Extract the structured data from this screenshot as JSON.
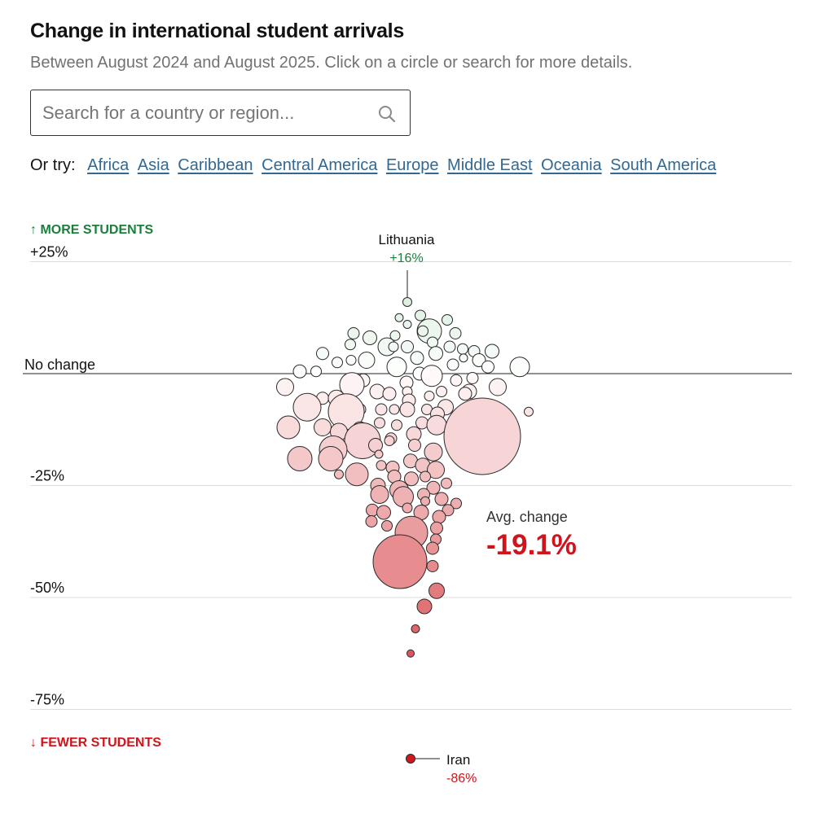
{
  "header": {
    "title": "Change in international student arrivals",
    "subtitle": "Between August 2024 and August 2025. Click on a circle or search for more details."
  },
  "search": {
    "placeholder": "Search for a country or region..."
  },
  "try_row": {
    "label": "Or try:",
    "links": [
      "Africa",
      "Asia",
      "Caribbean",
      "Central America",
      "Europe",
      "Middle East",
      "Oceania",
      "South America"
    ]
  },
  "colors": {
    "positive": "#1a7f3a",
    "negative": "#d0141b",
    "link": "#326891",
    "gridline": "#dcdcdc"
  },
  "chart_data": {
    "type": "scatter",
    "title": "Change in international student arrivals",
    "y_unit": "% change",
    "ylim": [
      -86,
      25
    ],
    "y_ticks": [
      {
        "value": 25,
        "label": "+25%"
      },
      {
        "value": 0,
        "label": "No change"
      },
      {
        "value": -25,
        "label": "-25%"
      },
      {
        "value": -50,
        "label": "-50%"
      },
      {
        "value": -75,
        "label": "-75%"
      }
    ],
    "direction_labels": {
      "up": "↑ MORE STUDENTS",
      "down": "↓ FEWER STUDENTS"
    },
    "average": {
      "label": "Avg. change",
      "value_label": "-19.1%",
      "value": -19.1
    },
    "annotations": [
      {
        "name": "Lithuania",
        "label": "+16%",
        "value": 16
      },
      {
        "name": "Iran",
        "label": "-86%",
        "value": -86
      }
    ],
    "points": [
      {
        "value": 16,
        "size": 5.5,
        "offset": 0
      },
      {
        "value": 13,
        "size": 6.5,
        "offset": 16
      },
      {
        "value": 12.5,
        "size": 5,
        "offset": -10
      },
      {
        "value": 12,
        "size": 6.5,
        "offset": 49
      },
      {
        "value": 11,
        "size": 5,
        "offset": 0
      },
      {
        "value": 9.5,
        "size": 15,
        "offset": 27
      },
      {
        "value": 9.5,
        "size": 6.5,
        "offset": 19
      },
      {
        "value": 9,
        "size": 7,
        "offset": 59
      },
      {
        "value": 9,
        "size": 7,
        "offset": -66
      },
      {
        "value": 8.5,
        "size": 6,
        "offset": -15
      },
      {
        "value": 8,
        "size": 8.5,
        "offset": -46
      },
      {
        "value": 7,
        "size": 6.5,
        "offset": 31
      },
      {
        "value": 6.5,
        "size": 6.5,
        "offset": -70
      },
      {
        "value": 6,
        "size": 11,
        "offset": -25
      },
      {
        "value": 6,
        "size": 7.5,
        "offset": 0
      },
      {
        "value": 6,
        "size": 6,
        "offset": -17
      },
      {
        "value": 6,
        "size": 7,
        "offset": 52
      },
      {
        "value": 5.5,
        "size": 6.5,
        "offset": 68
      },
      {
        "value": 5,
        "size": 7,
        "offset": 82
      },
      {
        "value": 5,
        "size": 8.5,
        "offset": 104
      },
      {
        "value": 4.5,
        "size": 8.5,
        "offset": 35
      },
      {
        "value": 4.5,
        "size": 7.5,
        "offset": -104
      },
      {
        "value": 3.5,
        "size": 5,
        "offset": 69
      },
      {
        "value": 3.5,
        "size": 8,
        "offset": 12
      },
      {
        "value": 3,
        "size": 10,
        "offset": -50
      },
      {
        "value": 3,
        "size": 8,
        "offset": 88
      },
      {
        "value": 3,
        "size": 6,
        "offset": -69
      },
      {
        "value": 2.5,
        "size": 6.5,
        "offset": -86
      },
      {
        "value": 2,
        "size": 7,
        "offset": 56
      },
      {
        "value": 1.5,
        "size": 12,
        "offset": -13
      },
      {
        "value": 1.5,
        "size": 12,
        "offset": 138
      },
      {
        "value": 1.5,
        "size": 7.5,
        "offset": 99
      },
      {
        "value": 0.5,
        "size": 6.5,
        "offset": -112
      },
      {
        "value": 0.5,
        "size": 8,
        "offset": -132
      },
      {
        "value": 0,
        "size": 8,
        "offset": 15
      },
      {
        "value": -0.5,
        "size": 13,
        "offset": 30
      },
      {
        "value": -1,
        "size": 7,
        "offset": 80
      },
      {
        "value": -1.5,
        "size": 8,
        "offset": -54
      },
      {
        "value": -1.5,
        "size": 7,
        "offset": 60
      },
      {
        "value": -2,
        "size": 8,
        "offset": -1
      },
      {
        "value": -2.5,
        "size": 15,
        "offset": -68
      },
      {
        "value": -3,
        "size": 10.5,
        "offset": -150
      },
      {
        "value": -3,
        "size": 10.5,
        "offset": 111
      },
      {
        "value": -4,
        "size": 9,
        "offset": 76
      },
      {
        "value": -4,
        "size": 9,
        "offset": -37
      },
      {
        "value": -4.5,
        "size": 8,
        "offset": -22
      },
      {
        "value": -4,
        "size": 6.5,
        "offset": 42
      },
      {
        "value": -4,
        "size": 6,
        "offset": 0
      },
      {
        "value": -5,
        "size": 6,
        "offset": 27
      },
      {
        "value": -4.5,
        "size": 8,
        "offset": 71
      },
      {
        "value": -5.5,
        "size": 7.5,
        "offset": -104
      },
      {
        "value": -5.5,
        "size": 10,
        "offset": -87
      },
      {
        "value": -6,
        "size": 8,
        "offset": 2
      },
      {
        "value": -7.5,
        "size": 17,
        "offset": -123
      },
      {
        "value": -7.5,
        "size": 9.5,
        "offset": 47
      },
      {
        "value": -8,
        "size": 7,
        "offset": -77
      },
      {
        "value": -8,
        "size": 7,
        "offset": -58
      },
      {
        "value": -8,
        "size": 7,
        "offset": -32
      },
      {
        "value": -8,
        "size": 6,
        "offset": -16
      },
      {
        "value": -8,
        "size": 6.5,
        "offset": 24
      },
      {
        "value": -8,
        "size": 9,
        "offset": 0
      },
      {
        "value": -8.5,
        "size": 22,
        "offset": -75
      },
      {
        "value": -8.5,
        "size": 5.5,
        "offset": 149
      },
      {
        "value": -9,
        "size": 8.5,
        "offset": 37
      },
      {
        "value": -11.5,
        "size": 6.5,
        "offset": -13
      },
      {
        "value": -11,
        "size": 7.5,
        "offset": 18
      },
      {
        "value": -11,
        "size": 6.5,
        "offset": -34
      },
      {
        "value": -11.5,
        "size": 12,
        "offset": 36
      },
      {
        "value": -12,
        "size": 10.5,
        "offset": -104
      },
      {
        "value": -12,
        "size": 14,
        "offset": -146
      },
      {
        "value": -12.5,
        "size": 9.5,
        "offset": -58
      },
      {
        "value": -13,
        "size": 10.5,
        "offset": -84
      },
      {
        "value": -14,
        "size": 47,
        "offset": 92
      },
      {
        "value": -13.5,
        "size": 9,
        "offset": 8
      },
      {
        "value": -14.5,
        "size": 7,
        "offset": -20
      },
      {
        "value": -15,
        "size": 22,
        "offset": -55
      },
      {
        "value": -15,
        "size": 6,
        "offset": -22
      },
      {
        "value": -16,
        "size": 7.5,
        "offset": 9
      },
      {
        "value": -16,
        "size": 8.5,
        "offset": -39
      },
      {
        "value": -17,
        "size": 17,
        "offset": -91
      },
      {
        "value": -17.5,
        "size": 11,
        "offset": 32
      },
      {
        "value": -18,
        "size": 5,
        "offset": -35
      },
      {
        "value": -19,
        "size": 15,
        "offset": -132
      },
      {
        "value": -19,
        "size": 15,
        "offset": -94
      },
      {
        "value": -19.5,
        "size": 8.5,
        "offset": 4
      },
      {
        "value": -20.5,
        "size": 6,
        "offset": -32
      },
      {
        "value": -20.5,
        "size": 9,
        "offset": 19
      },
      {
        "value": -21,
        "size": 8,
        "offset": -18
      },
      {
        "value": -21.5,
        "size": 10.5,
        "offset": 35
      },
      {
        "value": -22.5,
        "size": 14,
        "offset": -62
      },
      {
        "value": -22.5,
        "size": 5.5,
        "offset": -84
      },
      {
        "value": -23,
        "size": 6.5,
        "offset": 22
      },
      {
        "value": -23.5,
        "size": 8.5,
        "offset": 5
      },
      {
        "value": -23,
        "size": 8,
        "offset": -16
      },
      {
        "value": -24.5,
        "size": 6.5,
        "offset": 48
      },
      {
        "value": -25,
        "size": 9,
        "offset": -36
      },
      {
        "value": -25.5,
        "size": 8,
        "offset": 32
      },
      {
        "value": -26,
        "size": 11.5,
        "offset": -10
      },
      {
        "value": -27,
        "size": 11,
        "offset": -34
      },
      {
        "value": -27,
        "size": 7.5,
        "offset": 20
      },
      {
        "value": -27.5,
        "size": 12.5,
        "offset": -5
      },
      {
        "value": -28,
        "size": 8,
        "offset": 42
      },
      {
        "value": -28.5,
        "size": 5.5,
        "offset": 22
      },
      {
        "value": -29,
        "size": 6.5,
        "offset": 60
      },
      {
        "value": -30,
        "size": 6,
        "offset": 0
      },
      {
        "value": -30.5,
        "size": 7.5,
        "offset": -43
      },
      {
        "value": -31,
        "size": 9,
        "offset": 17
      },
      {
        "value": -30.5,
        "size": 7,
        "offset": 50
      },
      {
        "value": -31,
        "size": 8.5,
        "offset": -29
      },
      {
        "value": -32,
        "size": 8,
        "offset": 39
      },
      {
        "value": -33,
        "size": 7,
        "offset": -44
      },
      {
        "value": -34,
        "size": 6.5,
        "offset": -25
      },
      {
        "value": -34.5,
        "size": 7.5,
        "offset": 36
      },
      {
        "value": -35.5,
        "size": 20,
        "offset": 5
      },
      {
        "value": -37,
        "size": 6.5,
        "offset": 35
      },
      {
        "value": -39,
        "size": 7.5,
        "offset": 31
      },
      {
        "value": -42,
        "size": 33,
        "offset": -9
      },
      {
        "value": -43,
        "size": 7,
        "offset": 31
      },
      {
        "value": -48.5,
        "size": 9.5,
        "offset": 36
      },
      {
        "value": -52,
        "size": 9,
        "offset": 21
      },
      {
        "value": -57,
        "size": 5,
        "offset": 10
      },
      {
        "value": -62.5,
        "size": 4.5,
        "offset": 4
      },
      {
        "value": -86,
        "size": 5.5,
        "offset": 4
      }
    ]
  }
}
